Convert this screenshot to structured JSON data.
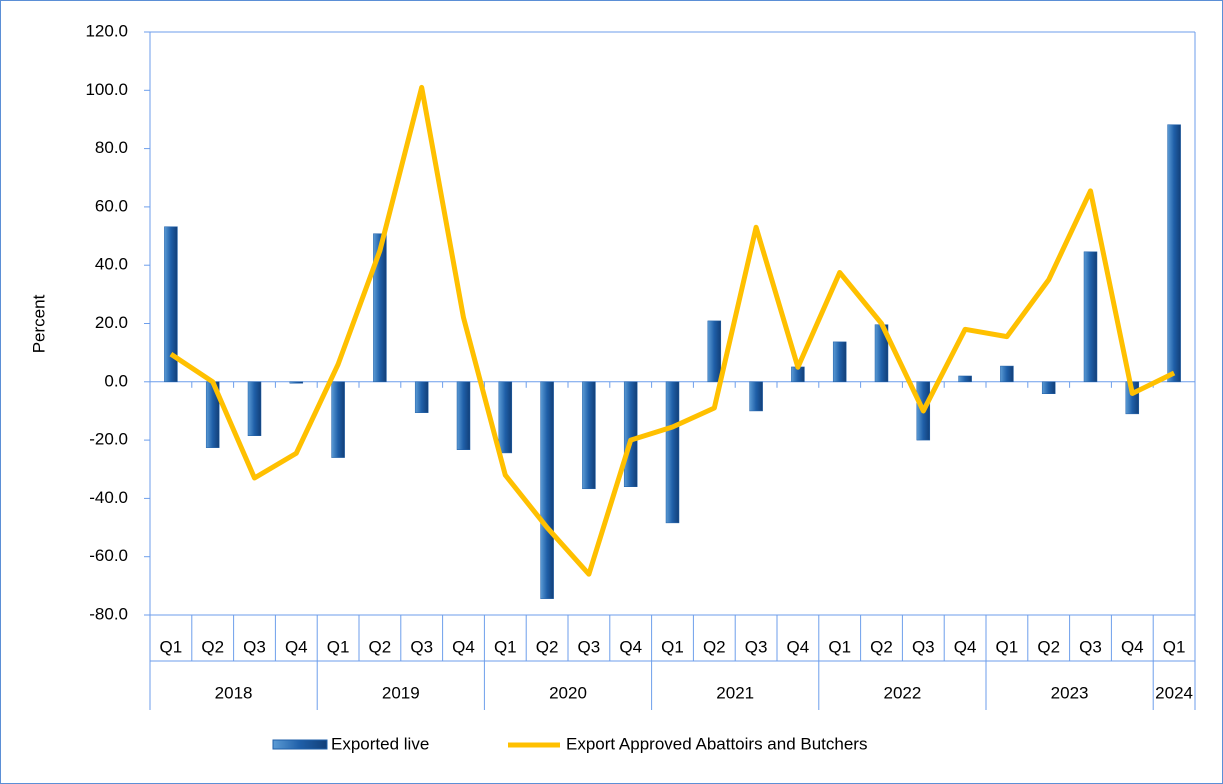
{
  "chart_data": {
    "type": "bar-line",
    "y_label": "Percent",
    "categories": [
      "Q1",
      "Q2",
      "Q3",
      "Q4",
      "Q1",
      "Q2",
      "Q3",
      "Q4",
      "Q1",
      "Q2",
      "Q3",
      "Q4",
      "Q1",
      "Q2",
      "Q3",
      "Q4",
      "Q1",
      "Q2",
      "Q3",
      "Q4",
      "Q1",
      "Q2",
      "Q3",
      "Q4",
      "Q1"
    ],
    "groups": [
      "2018",
      "2019",
      "2020",
      "2021",
      "2022",
      "2023",
      "2024"
    ],
    "ylim": [
      -80,
      120
    ],
    "yticks": [
      {
        "value": -80,
        "label": "-80.0"
      },
      {
        "value": -60,
        "label": "-60.0"
      },
      {
        "value": -40,
        "label": "-40.0"
      },
      {
        "value": -20,
        "label": "-20.0"
      },
      {
        "value": 0,
        "label": "0.0"
      },
      {
        "value": 20,
        "label": "20.0"
      },
      {
        "value": 40,
        "label": "40.0"
      },
      {
        "value": 60,
        "label": "60.0"
      },
      {
        "value": 80,
        "label": "80.0"
      },
      {
        "value": 100,
        "label": "100.0"
      },
      {
        "value": 120,
        "label": "120.0"
      }
    ],
    "series": [
      {
        "name": "Exported live",
        "type": "bar",
        "color": "#1f5fa8",
        "values": [
          53.2,
          -22.6,
          -18.5,
          -0.5,
          -26,
          50.8,
          -10.6,
          -23.3,
          -24.4,
          -74.4,
          -36.7,
          -36,
          -48.4,
          20.9,
          -10,
          5.1,
          13.7,
          19.6,
          -20,
          2,
          5.4,
          -4.1,
          44.6,
          -11,
          88.2
        ]
      },
      {
        "name": "Export Approved Abattoirs and Butchers",
        "type": "line",
        "color": "#ffc000",
        "values": [
          9.5,
          0,
          -33,
          -24.5,
          6,
          45,
          101,
          22,
          -32,
          -50,
          -66,
          -20,
          -15.5,
          -9,
          53,
          5,
          37.5,
          20,
          -10,
          18,
          15.5,
          35,
          65.5,
          -4,
          3
        ]
      }
    ]
  }
}
